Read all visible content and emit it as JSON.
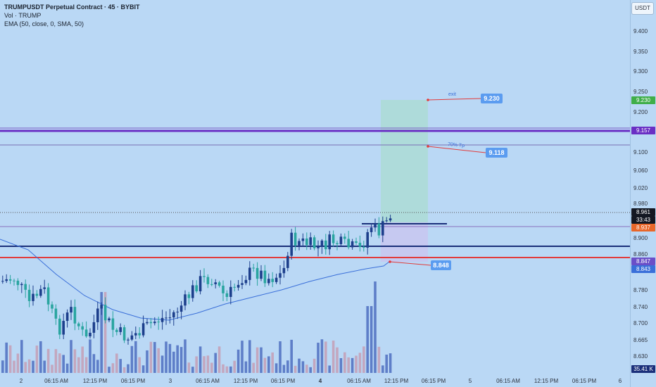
{
  "header": {
    "title": "TRUMPUSDT Perpetual Contract · 45 · BYBIT",
    "volume_label": "Vol · TRUMP",
    "ema_label": "EMA (50, close, 0, SMA, 50)"
  },
  "currency": "USDT",
  "price_axis": [
    "9.400",
    "9.350",
    "9.300",
    "9.250",
    "9.200",
    "9.100",
    "9.060",
    "9.020",
    "8.980",
    "8.900",
    "8.860",
    "8.780",
    "8.740",
    "8.700",
    "8.665",
    "8.630"
  ],
  "time_axis": [
    "2",
    "06:15 AM",
    "12:15 PM",
    "06:15 PM",
    "3",
    "06:15 AM",
    "12:15 PM",
    "06:15 PM",
    "4",
    "06:15 AM",
    "12:15 PM",
    "06:15 PM",
    "5",
    "06:15 AM",
    "12:15 PM",
    "06:15 PM",
    "6"
  ],
  "tags": {
    "exit": "9.230",
    "purple": "9.157",
    "last_price": "8.961",
    "countdown": "33:43",
    "orange": "8.937",
    "stop_purple": "8.847",
    "stop_blue": "8.843",
    "volume": "35.41 K"
  },
  "annotations": {
    "exit_note": "exit",
    "exit_value": "9.230",
    "tp_note": "70% Tp",
    "tp_value": "9.118",
    "stop_value": "8.848"
  },
  "colors": {
    "bull": "#1d3f8c",
    "bear": "#2aa5a0",
    "vol_bull": "#4d6fc0",
    "vol_bear": "#c49fb5",
    "purple_line": "#6a2fc4",
    "red_line": "#e23b3b",
    "navy_line": "#1a2f7a",
    "ema": "#3a6fd9",
    "profit_zone": "#a9dcd0",
    "loss_zone": "#c9c6f0"
  }
}
